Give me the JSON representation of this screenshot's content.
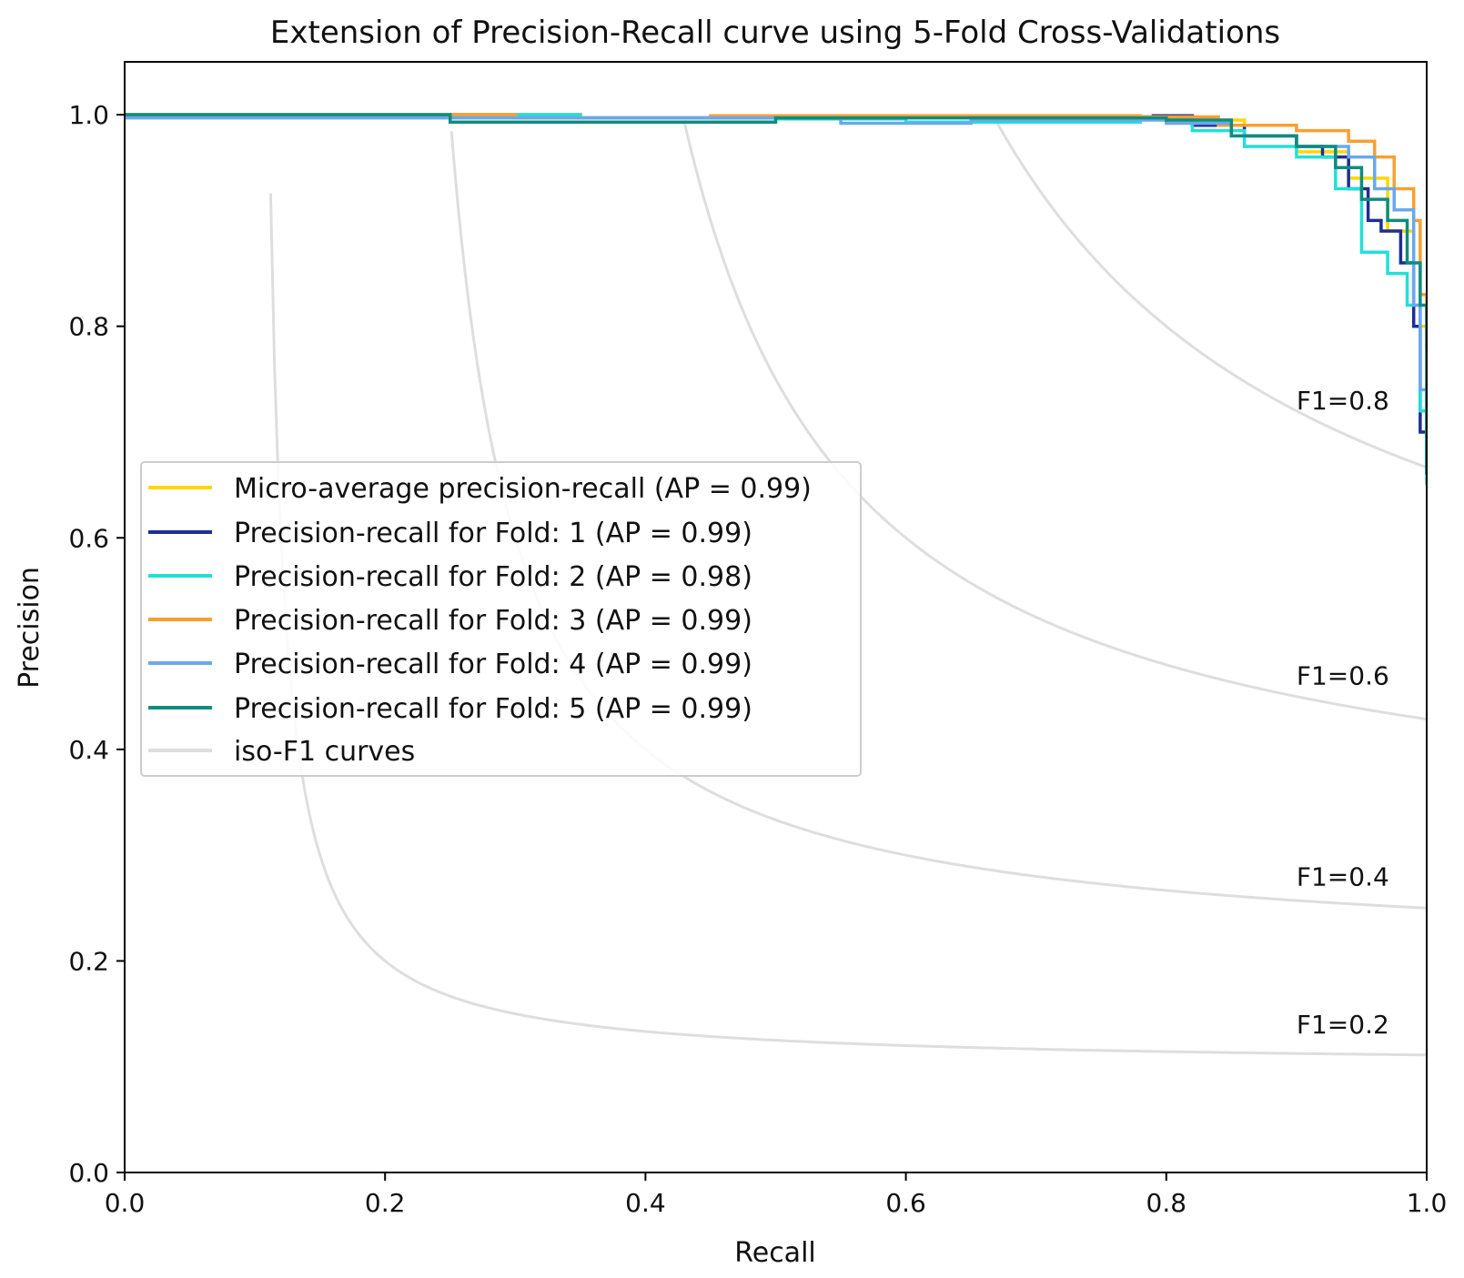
{
  "chart_data": {
    "type": "line",
    "title": "Extension of Precision-Recall curve using 5-Fold Cross-Validations",
    "xlabel": "Recall",
    "ylabel": "Precision",
    "xlim": [
      0.0,
      1.0
    ],
    "ylim": [
      0.0,
      1.05
    ],
    "xticks": [
      "0.0",
      "0.2",
      "0.4",
      "0.6",
      "0.8",
      "1.0"
    ],
    "yticks": [
      "0.0",
      "0.2",
      "0.4",
      "0.6",
      "0.8",
      "1.0"
    ],
    "legend_position": "center-left",
    "iso_f1": [
      {
        "f1": 0.2,
        "label": "F1=0.2",
        "label_y": 0.14
      },
      {
        "f1": 0.4,
        "label": "F1=0.4",
        "label_y": 0.28
      },
      {
        "f1": 0.6,
        "label": "F1=0.6",
        "label_y": 0.47
      },
      {
        "f1": 0.8,
        "label": "F1=0.8",
        "label_y": 0.73
      }
    ],
    "series": [
      {
        "name": "Micro-average precision-recall (AP = 0.99)",
        "color": "#FFD700",
        "x": [
          0.0,
          0.25,
          0.35,
          0.5,
          0.7,
          0.8,
          0.86,
          0.9,
          0.94,
          0.97,
          0.99,
          1.0
        ],
        "y": [
          1.0,
          1.0,
          0.997,
          0.998,
          0.997,
          0.995,
          0.98,
          0.965,
          0.94,
          0.89,
          0.8,
          0.66
        ]
      },
      {
        "name": "Precision-recall for Fold: 1 (AP = 0.99)",
        "color": "#1f2f8f",
        "x": [
          0.0,
          0.25,
          0.35,
          0.5,
          0.7,
          0.79,
          0.82,
          0.86,
          0.9,
          0.92,
          0.94,
          0.955,
          0.965,
          0.98,
          0.99,
          0.995,
          1.0
        ],
        "y": [
          1.0,
          1.0,
          0.997,
          0.998,
          0.998,
          0.999,
          0.99,
          0.98,
          0.97,
          0.96,
          0.93,
          0.9,
          0.89,
          0.86,
          0.8,
          0.7,
          0.66
        ]
      },
      {
        "name": "Precision-recall for Fold: 2 (AP = 0.98)",
        "color": "#22e0d8",
        "x": [
          0.0,
          0.25,
          0.35,
          0.5,
          0.6,
          0.72,
          0.78,
          0.82,
          0.86,
          0.9,
          0.93,
          0.95,
          0.97,
          0.985,
          0.995,
          1.0
        ],
        "y": [
          1.0,
          1.0,
          0.997,
          0.996,
          0.993,
          0.993,
          0.997,
          0.985,
          0.97,
          0.96,
          0.93,
          0.87,
          0.85,
          0.82,
          0.72,
          0.65
        ]
      },
      {
        "name": "Precision-recall for Fold: 3 (AP = 0.99)",
        "color": "#f7a031",
        "x": [
          0.0,
          0.26,
          0.3,
          0.45,
          0.6,
          0.78,
          0.84,
          0.9,
          0.94,
          0.96,
          0.975,
          0.99,
          0.995,
          1.0
        ],
        "y": [
          1.0,
          1.0,
          0.997,
          0.999,
          0.999,
          0.998,
          0.99,
          0.985,
          0.975,
          0.96,
          0.93,
          0.9,
          0.83,
          0.78
        ]
      },
      {
        "name": "Precision-recall for Fold: 4 (AP = 0.99)",
        "color": "#6aa8ee",
        "x": [
          0.0,
          0.25,
          0.35,
          0.55,
          0.65,
          0.8,
          0.85,
          0.9,
          0.94,
          0.96,
          0.975,
          0.99,
          0.995,
          1.0
        ],
        "y": [
          0.997,
          0.997,
          0.997,
          0.992,
          0.995,
          0.992,
          0.98,
          0.97,
          0.96,
          0.93,
          0.91,
          0.82,
          0.74,
          0.66
        ]
      },
      {
        "name": "Precision-recall for Fold: 5 (AP = 0.99)",
        "color": "#0f8c7e",
        "x": [
          0.0,
          0.24,
          0.25,
          0.35,
          0.5,
          0.7,
          0.8,
          0.85,
          0.9,
          0.93,
          0.95,
          0.97,
          0.985,
          0.995,
          1.0
        ],
        "y": [
          1.0,
          1.0,
          0.993,
          0.993,
          0.997,
          0.997,
          0.995,
          0.98,
          0.97,
          0.95,
          0.92,
          0.9,
          0.86,
          0.82,
          0.66
        ]
      }
    ],
    "iso_legend_label": "iso-F1 curves",
    "iso_color": "#dedede"
  }
}
